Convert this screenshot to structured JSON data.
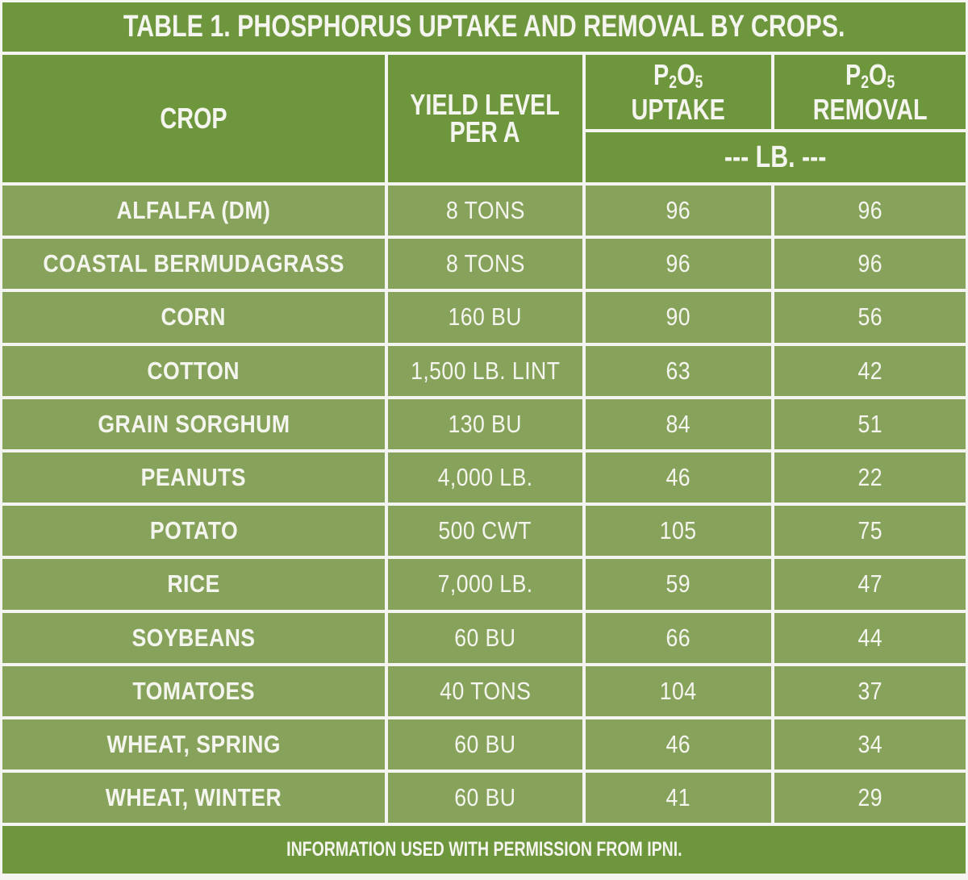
{
  "title": "TABLE 1. PHOSPHORUS UPTAKE AND REMOVAL BY CROPS.",
  "header": {
    "crop": "CROP",
    "yield_line1": "YIELD LEVEL",
    "yield_line2": "PER A",
    "uptake_formula": "P",
    "uptake_sub1": "2",
    "uptake_o": "O",
    "uptake_sub2": "5",
    "uptake_label": "UPTAKE",
    "removal_formula": "P",
    "removal_sub1": "2",
    "removal_o": "O",
    "removal_sub2": "5",
    "removal_label": "REMOVAL",
    "unit": "--- LB. ---"
  },
  "rows": [
    {
      "crop": "ALFALFA (DM)",
      "yield": "8 TONS",
      "uptake": "96",
      "removal": "96"
    },
    {
      "crop": "COASTAL BERMUDAGRASS",
      "yield": "8 TONS",
      "uptake": "96",
      "removal": "96"
    },
    {
      "crop": "CORN",
      "yield": "160 BU",
      "uptake": "90",
      "removal": "56"
    },
    {
      "crop": "COTTON",
      "yield": "1,500 LB. LINT",
      "uptake": "63",
      "removal": "42"
    },
    {
      "crop": "GRAIN SORGHUM",
      "yield": "130 BU",
      "uptake": "84",
      "removal": "51"
    },
    {
      "crop": "PEANUTS",
      "yield": "4,000 LB.",
      "uptake": "46",
      "removal": "22"
    },
    {
      "crop": "POTATO",
      "yield": "500 CWT",
      "uptake": "105",
      "removal": "75"
    },
    {
      "crop": "RICE",
      "yield": "7,000 LB.",
      "uptake": "59",
      "removal": "47"
    },
    {
      "crop": "SOYBEANS",
      "yield": "60 BU",
      "uptake": "66",
      "removal": "44"
    },
    {
      "crop": "TOMATOES",
      "yield": "40 TONS",
      "uptake": "104",
      "removal": "37"
    },
    {
      "crop": "WHEAT, SPRING",
      "yield": "60 BU",
      "uptake": "46",
      "removal": "34"
    },
    {
      "crop": "WHEAT, WINTER",
      "yield": "60 BU",
      "uptake": "41",
      "removal": "29"
    }
  ],
  "footer": "INFORMATION USED WITH PERMISSION FROM IPNI.",
  "colors": {
    "header_green": "#6e963d",
    "row_green": "#87a35b",
    "text": "#f5f5ef",
    "border": "#f4f4f0"
  }
}
